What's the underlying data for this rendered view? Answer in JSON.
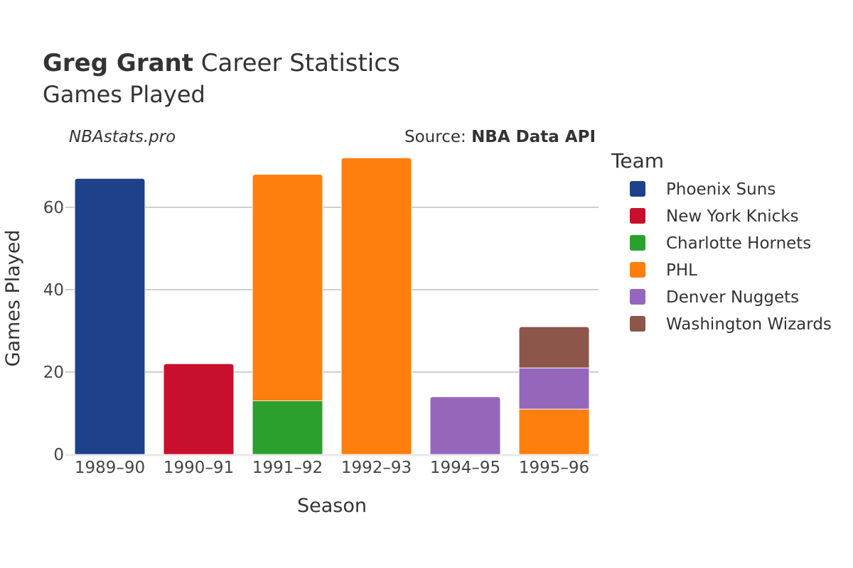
{
  "header": {
    "title_bold": "Greg Grant",
    "title_rest": " Career Statistics",
    "subtitle": "Games Played",
    "watermark": "NBAstats.pro",
    "source_prefix": "Source: ",
    "source_name": "NBA Data API"
  },
  "chart_data": {
    "type": "bar",
    "stacked": true,
    "title": "Greg Grant Career Statistics",
    "subtitle": "Games Played",
    "xlabel": "Season",
    "ylabel": "Games Played",
    "categories": [
      "1989–90",
      "1990–91",
      "1991–92",
      "1992–93",
      "1994–95",
      "1995–96"
    ],
    "ylim": [
      0,
      75
    ],
    "yticks": [
      0,
      20,
      40,
      60
    ],
    "ytick_labels": [
      "0",
      "20",
      "40",
      "60"
    ],
    "grid": true,
    "legend_title": "Team",
    "legend_position": "right",
    "series": [
      {
        "name": "Phoenix Suns",
        "color": "#1d428a",
        "values": [
          67,
          0,
          0,
          0,
          0,
          0
        ]
      },
      {
        "name": "New York Knicks",
        "color": "#c8102e",
        "values": [
          0,
          22,
          0,
          0,
          0,
          0
        ]
      },
      {
        "name": "Charlotte Hornets",
        "color": "#2ca02c",
        "values": [
          0,
          0,
          13,
          0,
          0,
          0
        ]
      },
      {
        "name": "PHL",
        "color": "#ff7f0e",
        "values": [
          0,
          0,
          55,
          72,
          0,
          11
        ]
      },
      {
        "name": "Denver Nuggets",
        "color": "#9467bd",
        "values": [
          0,
          0,
          0,
          0,
          14,
          10
        ]
      },
      {
        "name": "Washington Wizards",
        "color": "#8c564b",
        "values": [
          0,
          0,
          0,
          0,
          0,
          10
        ]
      }
    ]
  }
}
